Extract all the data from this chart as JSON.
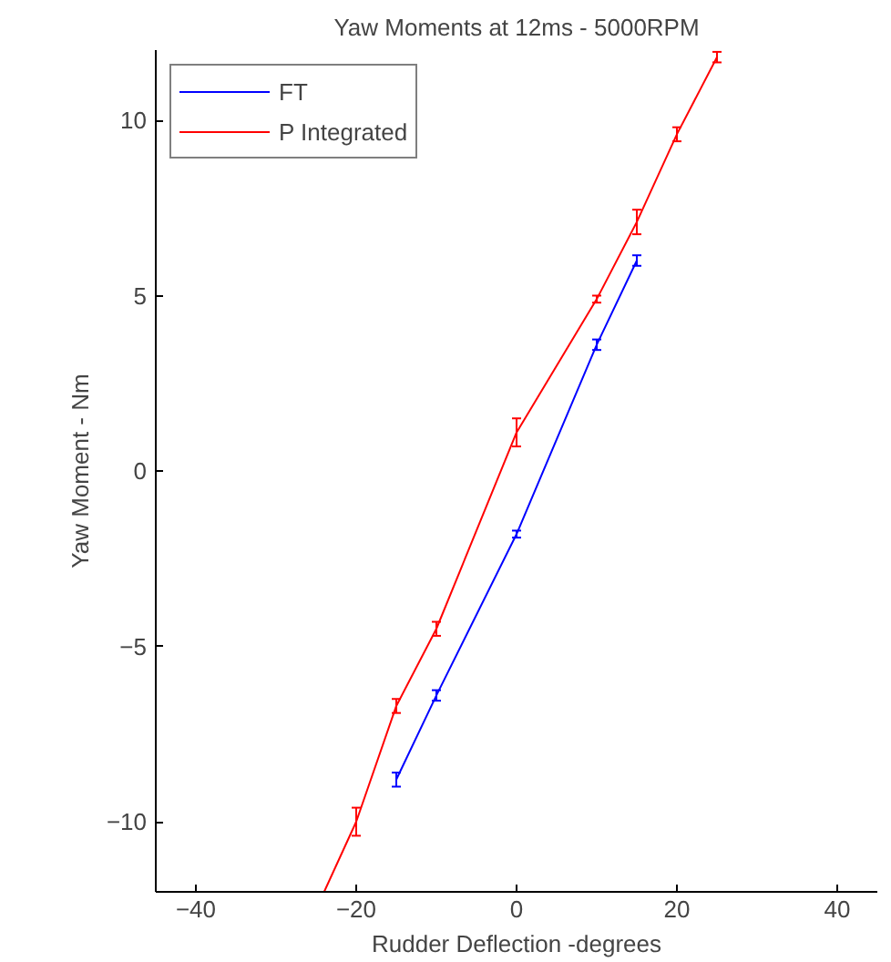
{
  "chart_data": {
    "type": "line",
    "title": "Yaw Moments at 12ms - 5000RPM",
    "xlabel": "Rudder Deflection -degrees",
    "ylabel": "Yaw Moment - Nm",
    "xlim": [
      -45,
      45
    ],
    "ylim": [
      -12,
      12
    ],
    "xticks": [
      -40,
      -20,
      0,
      20,
      40
    ],
    "yticks": [
      -10,
      -5,
      0,
      5,
      10
    ],
    "grid": false,
    "legend": "top left",
    "marker": "none",
    "line_style": "solid",
    "series": [
      {
        "name": "FT",
        "color": "#0000ff",
        "x": [
          -15,
          -10,
          0,
          10,
          15
        ],
        "values": [
          -8.8,
          -6.4,
          -1.8,
          3.6,
          6.0
        ],
        "errors": [
          0.2,
          0.15,
          0.1,
          0.15,
          0.15
        ]
      },
      {
        "name": "P Integrated",
        "color": "#ff0000",
        "x": [
          -24,
          -20,
          -15,
          -10,
          0,
          10,
          15,
          20,
          25
        ],
        "values": [
          -12,
          -10,
          -6.7,
          -4.5,
          1.1,
          4.9,
          7.1,
          9.6,
          11.8
        ],
        "errors": [
          null,
          0.4,
          0.2,
          0.2,
          0.4,
          0.1,
          0.35,
          0.2,
          0.15
        ]
      }
    ]
  }
}
